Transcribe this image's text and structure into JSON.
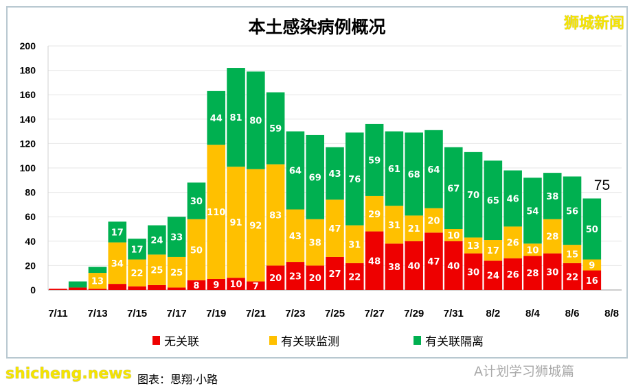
{
  "watermark": "狮城新闻",
  "footer": {
    "site": "shicheng.news",
    "note": "图表：思翔·小路",
    "wechat": "A计划学习狮城篇"
  },
  "chart_data": {
    "type": "bar",
    "stacked": true,
    "title": "本土感染病例概况",
    "xlabel": "",
    "ylabel": "",
    "ylim": [
      0,
      200
    ],
    "yticks": [
      0,
      20,
      40,
      60,
      80,
      100,
      120,
      140,
      160,
      180,
      200
    ],
    "grid": true,
    "legend_position": "bottom",
    "categories": [
      "7/11",
      "7/12",
      "7/13",
      "7/14",
      "7/15",
      "7/16",
      "7/17",
      "7/18",
      "7/19",
      "7/20",
      "7/21",
      "7/22",
      "7/23",
      "7/24",
      "7/25",
      "7/26",
      "7/27",
      "7/28",
      "7/29",
      "7/30",
      "7/31",
      "8/1",
      "8/2",
      "8/3",
      "8/4",
      "8/5",
      "8/6",
      "8/7",
      "8/8"
    ],
    "xtick_labels": [
      "7/11",
      "7/13",
      "7/15",
      "7/17",
      "7/19",
      "7/21",
      "7/23",
      "7/25",
      "7/27",
      "7/29",
      "7/31",
      "8/2",
      "8/4",
      "8/6",
      "8/8"
    ],
    "series": [
      {
        "name": "无关联",
        "color": "#ee0000",
        "values": [
          1,
          2,
          1,
          5,
          3,
          4,
          2,
          8,
          9,
          10,
          7,
          20,
          23,
          20,
          27,
          22,
          48,
          38,
          40,
          47,
          40,
          30,
          24,
          26,
          28,
          30,
          22,
          16,
          null
        ]
      },
      {
        "name": "有关联监测",
        "color": "#ffc000",
        "values": [
          0,
          0,
          13,
          34,
          22,
          25,
          25,
          50,
          110,
          91,
          92,
          83,
          43,
          38,
          47,
          31,
          29,
          31,
          21,
          20,
          10,
          13,
          17,
          26,
          10,
          28,
          15,
          9,
          null
        ]
      },
      {
        "name": "有关联隔离",
        "color": "#00b050",
        "values": [
          0,
          5,
          5,
          17,
          17,
          24,
          33,
          30,
          44,
          81,
          80,
          59,
          64,
          69,
          43,
          76,
          59,
          61,
          68,
          64,
          67,
          70,
          65,
          46,
          54,
          38,
          56,
          50,
          null
        ]
      }
    ],
    "annotations": [
      {
        "category": "8/7",
        "text": "75"
      }
    ]
  }
}
